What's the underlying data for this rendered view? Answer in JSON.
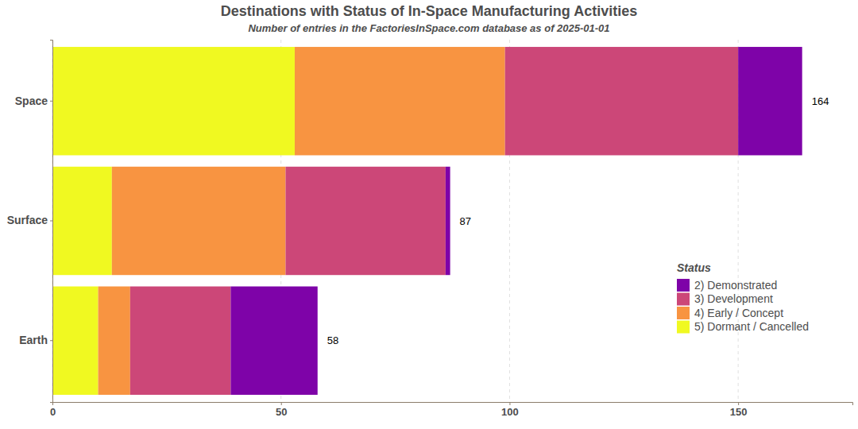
{
  "chart_data": {
    "type": "bar",
    "orientation": "horizontal",
    "stacked": true,
    "title": "Destinations with Status of In-Space Manufacturing Activities",
    "subtitle": "Number of entries in the FactoriesInSpace.com database as of 2025-01-01",
    "legend_title": "Status",
    "legend": "right",
    "grid": true,
    "categories": [
      "Space",
      "Surface",
      "Earth"
    ],
    "series": [
      {
        "name": "2)  Demonstrated",
        "color": "#7e03a8",
        "values": [
          14,
          1,
          19
        ]
      },
      {
        "name": "3)  Development",
        "color": "#cc4778",
        "values": [
          51,
          35,
          22
        ]
      },
      {
        "name": "4)  Early / Concept",
        "color": "#f89441",
        "values": [
          46,
          38,
          7
        ]
      },
      {
        "name": "5)  Dormant / Cancelled",
        "color": "#f0f921",
        "values": [
          53,
          13,
          10
        ]
      }
    ],
    "totals": [
      164,
      87,
      58
    ],
    "xlim": [
      0,
      175
    ],
    "xticks": [
      0,
      50,
      100,
      150
    ]
  }
}
